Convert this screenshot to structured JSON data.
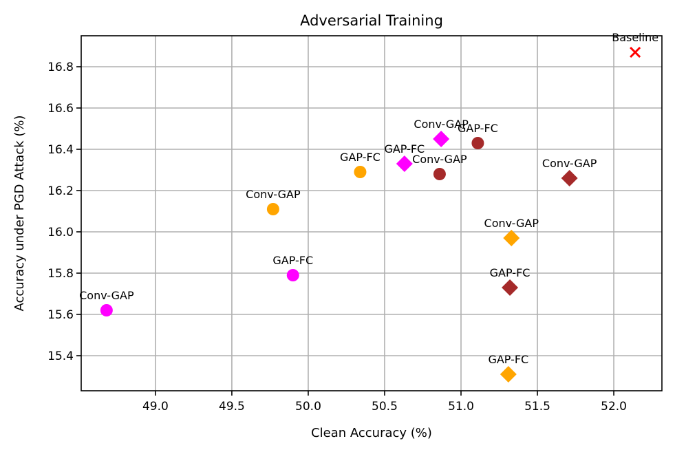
{
  "chart_data": {
    "type": "scatter",
    "title": "Adversarial Training",
    "xlabel": "Clean Accuracy (%)",
    "ylabel": "Accuracy under PGD Attack (%)",
    "xlim": [
      48.514,
      52.315
    ],
    "ylim": [
      15.23,
      16.95
    ],
    "xticks": [
      49.0,
      49.5,
      50.0,
      50.5,
      51.0,
      51.5,
      52.0
    ],
    "xtick_labels": [
      "49.0",
      "49.5",
      "50.0",
      "50.5",
      "51.0",
      "51.5",
      "52.0"
    ],
    "yticks": [
      15.4,
      15.6,
      15.8,
      16.0,
      16.2,
      16.4,
      16.6,
      16.8
    ],
    "ytick_labels": [
      "15.4",
      "15.6",
      "15.8",
      "16.0",
      "16.2",
      "16.4",
      "16.6",
      "16.8"
    ],
    "grid": true,
    "legend": null,
    "points": [
      {
        "label": "Baseline",
        "x": 52.14,
        "y": 16.87,
        "marker": "x",
        "color": "#ff0000"
      },
      {
        "label": "Conv-GAP",
        "x": 48.68,
        "y": 15.62,
        "marker": "circle",
        "color": "#ff00ff"
      },
      {
        "label": "GAP-FC",
        "x": 49.9,
        "y": 15.79,
        "marker": "circle",
        "color": "#ff00ff"
      },
      {
        "label": "Conv-GAP",
        "x": 49.77,
        "y": 16.11,
        "marker": "circle",
        "color": "#ffa500"
      },
      {
        "label": "GAP-FC",
        "x": 50.34,
        "y": 16.29,
        "marker": "circle",
        "color": "#ffa500"
      },
      {
        "label": "GAP-FC",
        "x": 50.63,
        "y": 16.33,
        "marker": "diamond",
        "color": "#ff00ff"
      },
      {
        "label": "Conv-GAP",
        "x": 50.87,
        "y": 16.45,
        "marker": "diamond",
        "color": "#ff00ff"
      },
      {
        "label": "Conv-GAP",
        "x": 50.86,
        "y": 16.28,
        "marker": "circle",
        "color": "#a52a2a"
      },
      {
        "label": "GAP-FC",
        "x": 51.11,
        "y": 16.43,
        "marker": "circle",
        "color": "#a52a2a"
      },
      {
        "label": "Conv-GAP",
        "x": 51.71,
        "y": 16.26,
        "marker": "diamond",
        "color": "#a52a2a"
      },
      {
        "label": "Conv-GAP",
        "x": 51.33,
        "y": 15.97,
        "marker": "diamond",
        "color": "#ffa500"
      },
      {
        "label": "GAP-FC",
        "x": 51.32,
        "y": 15.73,
        "marker": "diamond",
        "color": "#a52a2a"
      },
      {
        "label": "GAP-FC",
        "x": 51.31,
        "y": 15.31,
        "marker": "diamond",
        "color": "#ffa500"
      }
    ]
  }
}
